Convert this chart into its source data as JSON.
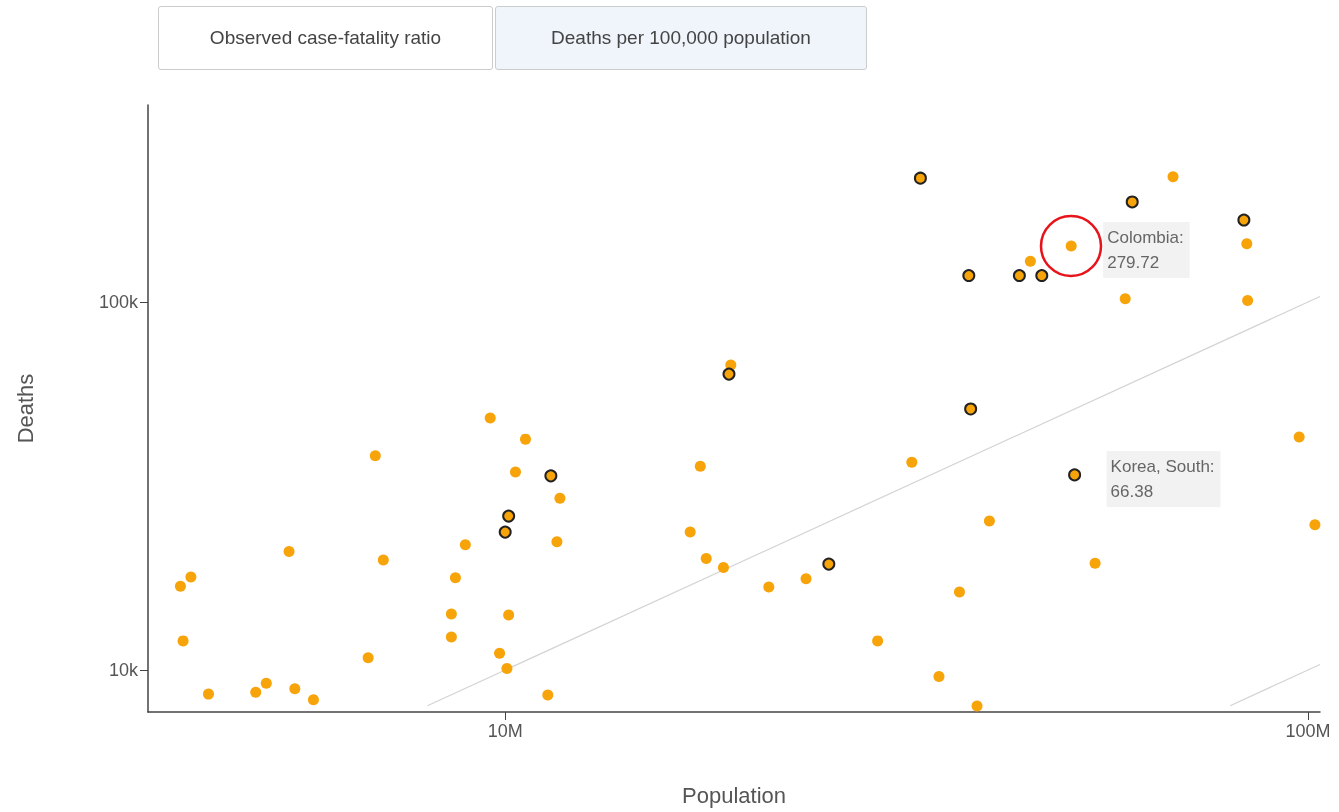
{
  "chart_data": {
    "type": "scatter",
    "xlabel": "Population",
    "ylabel": "Deaths",
    "log": "xy",
    "grid": false,
    "marker": "circle",
    "xlim": [
      3590000,
      103500000
    ],
    "ylim": [
      7690,
      343000
    ],
    "xticks": [
      {
        "value": 10000000,
        "label": "10M"
      },
      {
        "value": 100000000,
        "label": "100M"
      }
    ],
    "yticks": [
      {
        "value": 10000,
        "label": "10k"
      },
      {
        "value": 100000,
        "label": "100k"
      }
    ],
    "annotations": [
      "Observed case-fatality ratio",
      "Deaths per 100,000 population",
      {
        "text": "Colombia:\n279.72",
        "x": 50700000,
        "y": 142000
      },
      {
        "text": "Korea, South:\n66.38",
        "x": 51200000,
        "y": 33900
      }
    ],
    "series": [
      {
        "type": "line",
        "marker": "none",
        "color": "#d3d3d3",
        "x": [
          8000000,
          103500000
        ],
        "values": [
          8000,
          103500
        ]
      },
      {
        "type": "line",
        "marker": "none",
        "color": "#d3d3d3",
        "x": [
          80000000,
          103500000
        ],
        "values": [
          8000,
          10350
        ]
      },
      {
        "color": "#f7a30a",
        "x": [
          3940000,
          4060000,
          3970000,
          4270000,
          4890000,
          5040000,
          5380000,
          5470000,
          5770000,
          6750000,
          6890000,
          7050000,
          8570000,
          8570000,
          8670000,
          8920000,
          9580000,
          9840000,
          10050000,
          10100000,
          10300000,
          10600000,
          11300000,
          11600000,
          11700000,
          17000000,
          17500000,
          17800000,
          18700000,
          19100000,
          21300000,
          23700000,
          29100000,
          32100000,
          34700000,
          36800000,
          38700000,
          40100000,
          45100000,
          50700000,
          54300000,
          59200000,
          67900000,
          83900000,
          84100000,
          97500000,
          102000000
        ],
        "values": [
          16900,
          17900,
          12000,
          8600,
          8700,
          9200,
          21000,
          8900,
          8300,
          10800,
          38200,
          19900,
          12300,
          14200,
          17800,
          21900,
          48400,
          11100,
          10100,
          14100,
          34500,
          42400,
          8550,
          22300,
          29300,
          23700,
          35800,
          20100,
          19000,
          67400,
          16800,
          17700,
          12000,
          36700,
          9600,
          16300,
          7980,
          25400,
          129000,
          142000,
          19500,
          102000,
          219000,
          144000,
          101000,
          43000,
          24800
        ]
      },
      {
        "color": "#f7a30a",
        "x": [
          32900000,
          37800000,
          43700000,
          46600000,
          60400000,
          83200000,
          19000000,
          38000000,
          51200000,
          25300000,
          11400000,
          10100000,
          10000000
        ],
        "values": [
          217000,
          118000,
          118000,
          118000,
          187000,
          167000,
          63700,
          51200,
          33900,
          19400,
          33700,
          26200,
          23700
        ]
      }
    ]
  }
}
